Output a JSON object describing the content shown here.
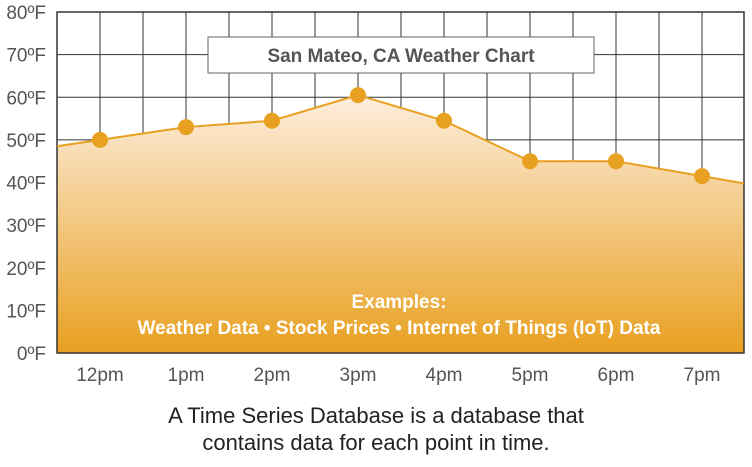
{
  "chart_data": {
    "type": "area",
    "title": "San Mateo, CA Weather Chart",
    "categories": [
      "12pm",
      "1pm",
      "2pm",
      "3pm",
      "4pm",
      "5pm",
      "6pm",
      "7pm"
    ],
    "values": [
      50,
      53,
      54.5,
      60.5,
      54.5,
      45,
      45,
      41.5
    ],
    "y_tick_labels": [
      "0ºF",
      "10ºF",
      "20ºF",
      "30ºF",
      "40ºF",
      "50ºF",
      "60ºF",
      "70ºF",
      "80ºF"
    ],
    "ylim": [
      0,
      80
    ],
    "xlabel": "",
    "ylabel": "",
    "grid": true,
    "annotation": {
      "line1": "Examples:",
      "line2": "Weather Data • Stock Prices • Internet of Things (IoT) Data"
    }
  },
  "caption": {
    "line1": "A Time Series Database is a database that",
    "line2": "contains data for each point in time."
  },
  "colors": {
    "accent": "#e8a020",
    "fill_top": "#fdeede",
    "fill_bottom": "#e8a020",
    "grid": "#333333",
    "axis_text": "#555555",
    "annotation_text": "#ffffff"
  }
}
